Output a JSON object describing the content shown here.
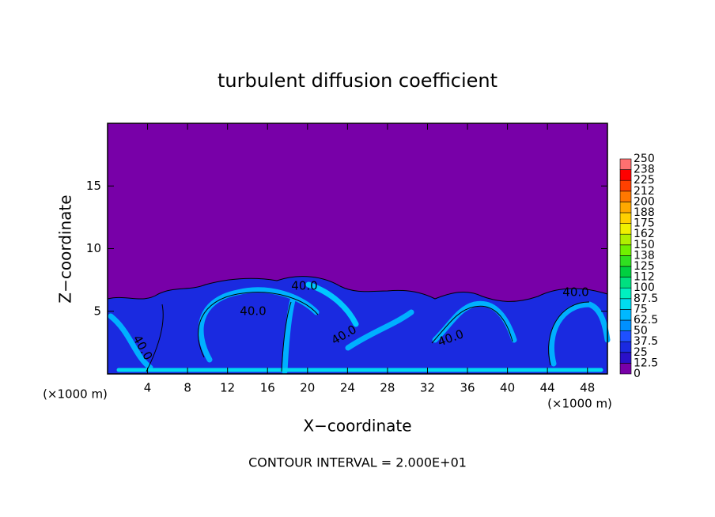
{
  "chart_data": {
    "type": "contour",
    "title": "turbulent diffusion coefficient",
    "x_label": "X−coordinate",
    "y_label": "Z−coordinate",
    "x_unit": "(×1000 m)",
    "footnote": "CONTOUR INTERVAL = 2.000E+01",
    "xlim": [
      0,
      50
    ],
    "xticks": [
      4,
      8,
      12,
      16,
      20,
      24,
      28,
      32,
      36,
      40,
      44,
      48
    ],
    "ylim": [
      0,
      20
    ],
    "yticks": [
      5,
      10,
      15
    ],
    "levels": [
      0,
      12.5,
      25,
      37.5,
      50,
      62.5,
      75,
      87.5,
      100,
      {
        "value": 112.5,
        "label": "112"
      },
      125,
      {
        "value": 137.5,
        "label": "138"
      },
      150,
      {
        "value": 162.5,
        "label": "162"
      },
      175,
      {
        "value": 187.5,
        "label": "188"
      },
      200,
      {
        "value": 212.5,
        "label": "212"
      },
      225,
      {
        "value": 237.5,
        "label": "238"
      },
      250
    ],
    "colors": [
      "#7800a8",
      "#2a10c8",
      "#1a2ae0",
      "#1e50ff",
      "#0090ff",
      "#00b8ff",
      "#00dcf0",
      "#00f0c0",
      "#00e080",
      "#00d040",
      "#30e020",
      "#70f000",
      "#b0f000",
      "#f0f000",
      "#ffd000",
      "#ffa800",
      "#ff7800",
      "#ff4000",
      "#ff0000",
      "#ff7070"
    ],
    "contour_labels": [
      "40.0",
      "40.0",
      "40.0",
      "40.0",
      "40.0",
      "40.0"
    ]
  }
}
